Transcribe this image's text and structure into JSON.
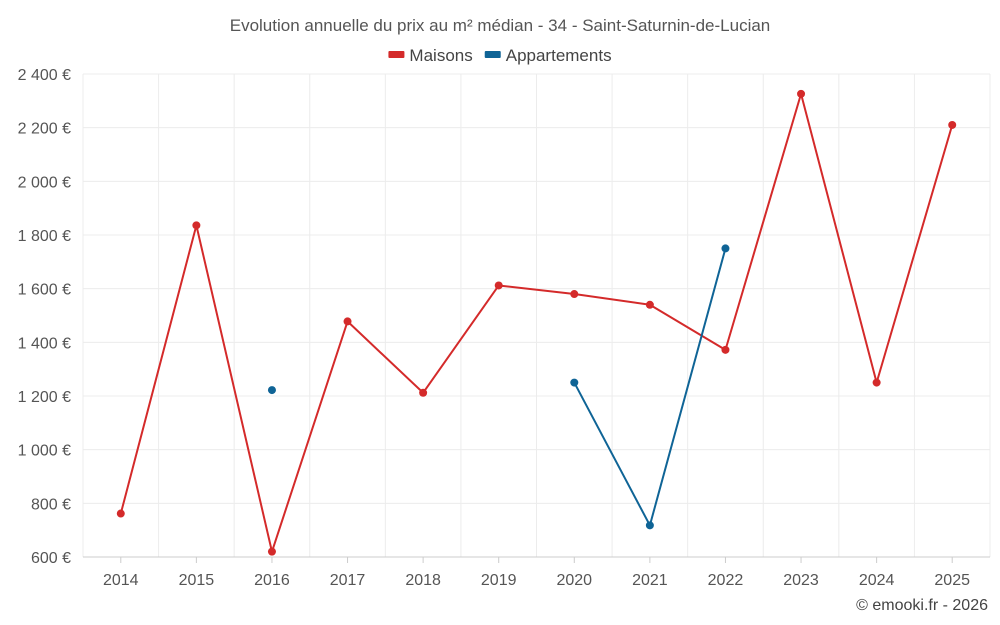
{
  "chart_data": {
    "type": "line",
    "title": "Evolution annuelle du prix au m² médian - 34 - Saint-Saturnin-de-Lucian",
    "categories": [
      "2014",
      "2015",
      "2016",
      "2017",
      "2018",
      "2019",
      "2020",
      "2021",
      "2022",
      "2023",
      "2024",
      "2025"
    ],
    "y_ticks": [
      "600 €",
      "800 €",
      "1 000 €",
      "1 200 €",
      "1 400 €",
      "1 600 €",
      "1 800 €",
      "2 000 €",
      "2 200 €",
      "2 400 €"
    ],
    "ylim": [
      600,
      2400
    ],
    "grid": true,
    "legend_position": "top-center",
    "series": [
      {
        "name": "Maisons",
        "color": "#d42a2a",
        "values": [
          762,
          1836,
          620,
          1478,
          1212,
          1612,
          1580,
          1540,
          1372,
          2326,
          1250,
          2210
        ]
      },
      {
        "name": "Appartements",
        "color": "#0f6496",
        "values": [
          null,
          null,
          1222,
          null,
          null,
          null,
          1250,
          718,
          1750,
          null,
          null,
          null
        ]
      }
    ]
  },
  "credit": "© emooki.fr - 2026"
}
